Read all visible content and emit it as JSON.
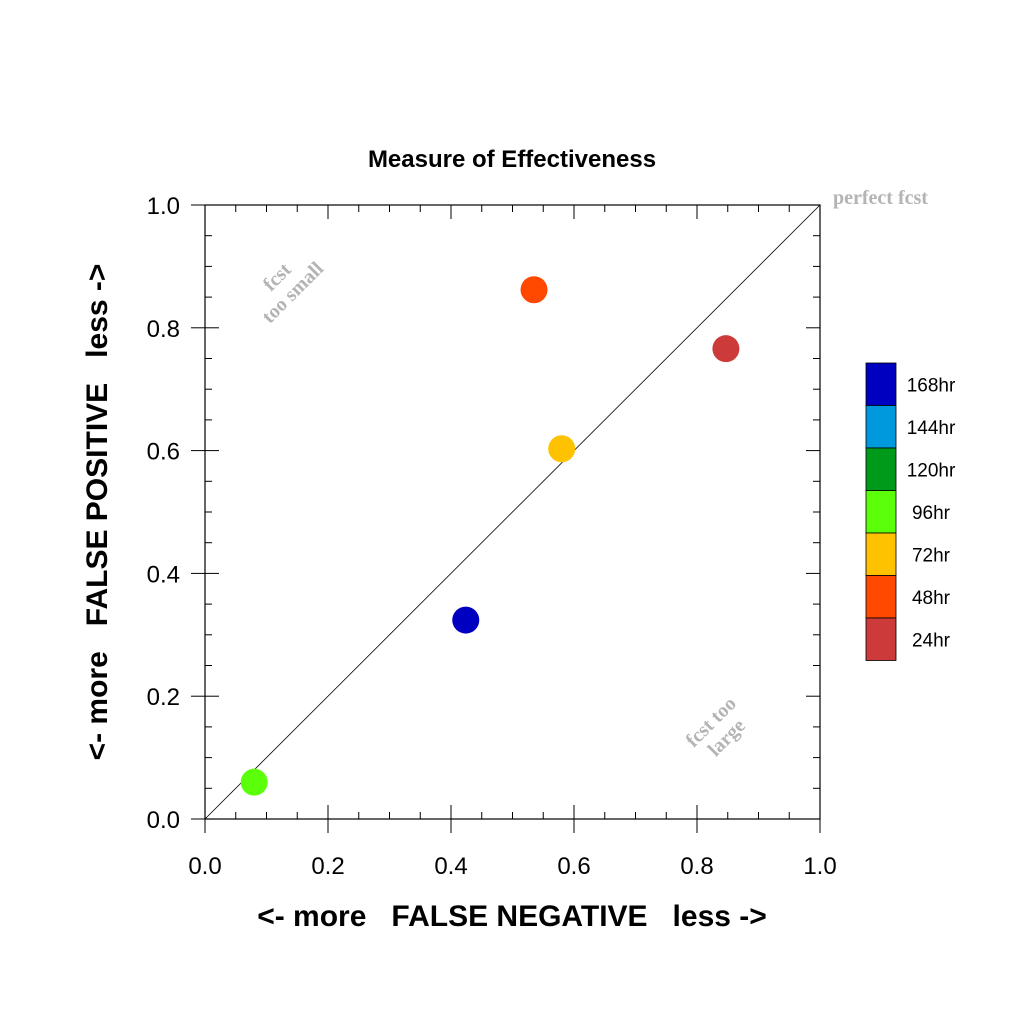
{
  "chart_data": {
    "type": "scatter",
    "title": "Measure of Effectiveness",
    "xlabel": "<- more   FALSE NEGATIVE   less ->",
    "ylabel": "<- more   FALSE POSITIVE   less ->",
    "xlim": [
      0.0,
      1.0
    ],
    "ylim": [
      0.0,
      1.0
    ],
    "x_ticks": [
      "0.0",
      "0.2",
      "0.4",
      "0.6",
      "0.8",
      "1.0"
    ],
    "y_ticks": [
      "0.0",
      "0.2",
      "0.4",
      "0.6",
      "0.8",
      "1.0"
    ],
    "grid": false,
    "diagonal_reference_line": true,
    "annotations": {
      "top_right": "perfect fcst",
      "upper_left_line1": "fcst",
      "upper_left_line2": "too small",
      "lower_right_line1": "fcst too",
      "lower_right_line2": "large"
    },
    "legend": {
      "placement": "right",
      "entries": [
        {
          "label": "168hr",
          "color": "#0000c0"
        },
        {
          "label": "144hr",
          "color": "#0099dd"
        },
        {
          "label": "120hr",
          "color": "#009a1a"
        },
        {
          "label": "96hr",
          "color": "#5cff0a"
        },
        {
          "label": "72hr",
          "color": "#ffc200"
        },
        {
          "label": "48hr",
          "color": "#ff4800"
        },
        {
          "label": "24hr",
          "color": "#cc3a3a"
        }
      ]
    },
    "points": [
      {
        "label": "168hr",
        "x": 0.424,
        "y": 0.324,
        "color": "#0000c0"
      },
      {
        "label": "96hr",
        "x": 0.08,
        "y": 0.06,
        "color": "#5cff0a"
      },
      {
        "label": "72hr",
        "x": 0.58,
        "y": 0.603,
        "color": "#ffc200"
      },
      {
        "label": "48hr",
        "x": 0.535,
        "y": 0.862,
        "color": "#ff4800"
      },
      {
        "label": "24hr",
        "x": 0.847,
        "y": 0.766,
        "color": "#cc3a3a"
      }
    ]
  }
}
